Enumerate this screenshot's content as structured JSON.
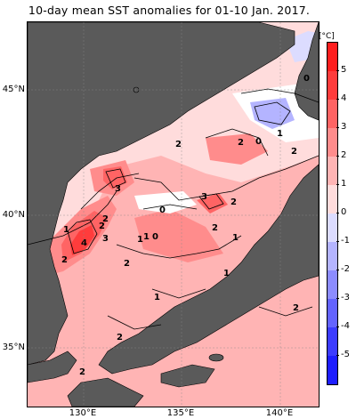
{
  "title": "10-day mean SST anomalies for 01-10 Jan. 2017.",
  "lat_labels": [
    "45°N",
    "40°N",
    "35°N"
  ],
  "lon_labels": [
    "130°E",
    "135°E",
    "140°E"
  ],
  "colorbar": {
    "unit": "[°C]",
    "labels": [
      "5",
      "4",
      "3",
      "2",
      "1",
      "0",
      "-1",
      "-2",
      "-3",
      "-4",
      "-5"
    ],
    "colors": [
      "#ff1e1e",
      "#ff3c3c",
      "#ff6464",
      "#ff8c8c",
      "#ffb4b4",
      "#ffdcdc",
      "#dcdcff",
      "#b4b4ff",
      "#8c8cff",
      "#6464ff",
      "#3c3cff",
      "#1e1eff"
    ]
  },
  "contour_labels": [
    "0",
    "2",
    "0",
    "1",
    "2",
    "2",
    "0",
    "2",
    "3",
    "0",
    "3",
    "1",
    "2",
    "2",
    "2",
    "3",
    "4",
    "1",
    "1",
    "2",
    "1",
    "1",
    "1",
    "2",
    "2",
    "2",
    "2"
  ],
  "colors": {
    "land": "#5a5a5a",
    "water_white": "#ffffff"
  }
}
